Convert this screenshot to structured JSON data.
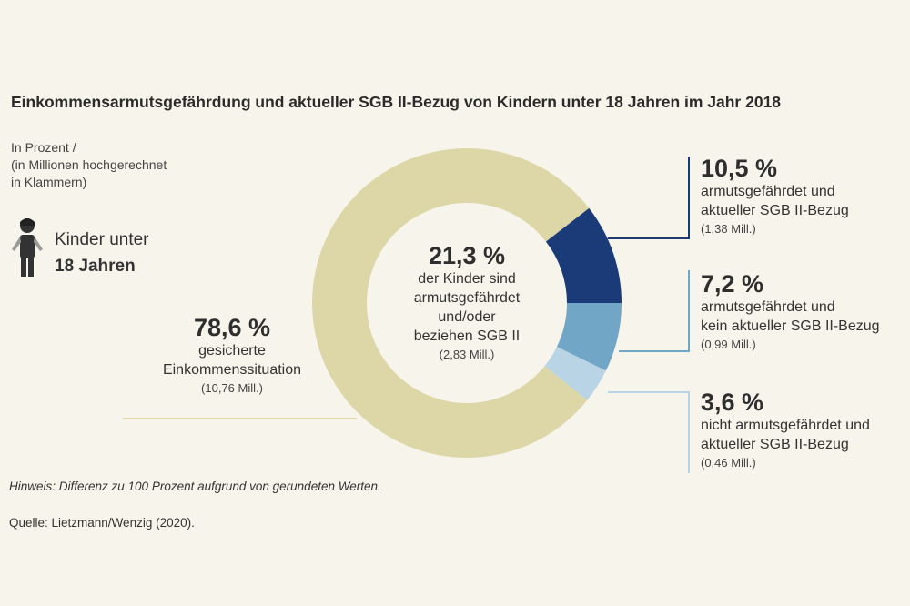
{
  "title": "Einkommensarmutsgefährdung und aktueller SGB II-Bezug  von Kindern unter 18 Jahren im Jahr 2018",
  "subtitle": [
    "In Prozent /",
    "(in Millionen hochgerechnet",
    "in Klammern)"
  ],
  "group": {
    "line1": "Kinder unter",
    "line2": "18 Jahren",
    "icon": "child-icon"
  },
  "center": {
    "value": "21,3 %",
    "text": [
      "der Kinder sind",
      "armutsgefährdet",
      "und/oder",
      "beziehen SGB II"
    ],
    "count": "(2,83 Mill.)"
  },
  "note": "Hinweis: Differenz zu 100 Prozent aufgrund von gerundeten Werten.",
  "source": "Quelle: Lietzmann/Wenzig (2020).",
  "chart_data": {
    "type": "pie",
    "donut": true,
    "title": "Einkommensarmutsgefährdung und aktueller SGB II-Bezug  von Kindern unter 18 Jahren im Jahr 2018",
    "slices": [
      {
        "value": 10.5,
        "label": "10,5 %",
        "text": [
          "armutsgefährdet und",
          "aktueller SGB II-Bezug"
        ],
        "count": "(1,38 Mill.)",
        "color": "#1b3a78"
      },
      {
        "value": 7.2,
        "label": "7,2 %",
        "text": [
          "armutsgefährdet und",
          "kein aktueller SGB II-Bezug"
        ],
        "count": "(0,99 Mill.)",
        "color": "#72a6c7"
      },
      {
        "value": 3.6,
        "label": "3,6 %",
        "text": [
          "nicht armutsgefährdet und",
          "aktueller SGB II-Bezug"
        ],
        "count": "(0,46 Mill.)",
        "color": "#b9d4e5"
      },
      {
        "value": 78.6,
        "label": "78,6 %",
        "text": [
          "gesicherte",
          "Einkommenssituation"
        ],
        "count": "(10,76 Mill.)",
        "color": "#ddd7a7"
      }
    ]
  }
}
